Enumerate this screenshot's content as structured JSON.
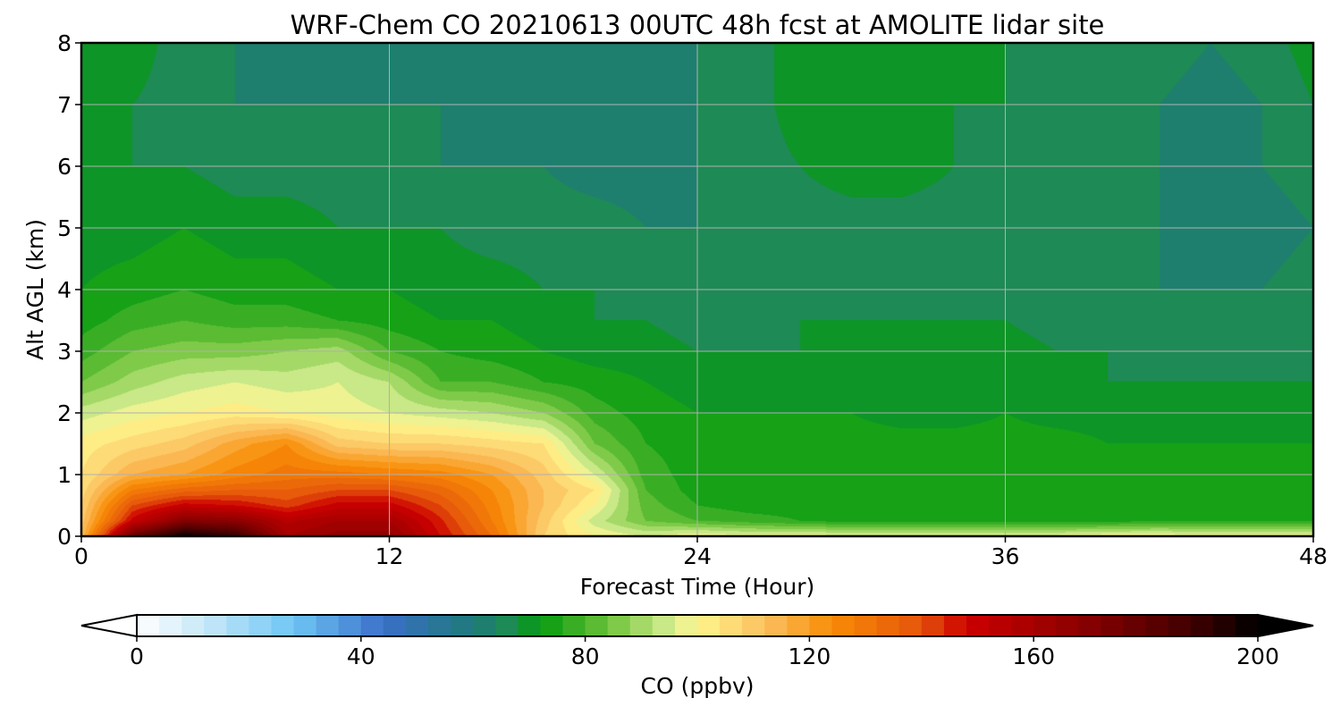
{
  "chart_data": {
    "type": "heatmap",
    "title": "WRF-Chem CO  20210613 00UTC 48h fcst at AMOLITE lidar site",
    "xlabel": "Forecast Time (Hour)",
    "ylabel": "Alt AGL (km)",
    "xlim": [
      0,
      48
    ],
    "ylim": [
      0,
      8
    ],
    "x_ticks": [
      "0",
      "12",
      "24",
      "36",
      "48"
    ],
    "y_ticks": [
      "0",
      "1",
      "2",
      "3",
      "4",
      "5",
      "6",
      "7",
      "8"
    ],
    "grid": true,
    "colorbar": {
      "label": "CO  (ppbv)",
      "range": [
        0,
        200
      ],
      "step": 4,
      "extend": "both",
      "ticks": [
        "0",
        "40",
        "80",
        "120",
        "160",
        "200"
      ],
      "colors": [
        {
          "value": 0,
          "color": "#ffffff"
        },
        {
          "value": 12,
          "color": "#c8e8f8"
        },
        {
          "value": 28,
          "color": "#6ec6f5"
        },
        {
          "value": 44,
          "color": "#3a6fc8"
        },
        {
          "value": 60,
          "color": "#1e7a7a"
        },
        {
          "value": 66,
          "color": "#1e8a55"
        },
        {
          "value": 72,
          "color": "#059a10"
        },
        {
          "value": 84,
          "color": "#6cc23a"
        },
        {
          "value": 96,
          "color": "#dcef96"
        },
        {
          "value": 100,
          "color": "#fff58c"
        },
        {
          "value": 112,
          "color": "#fbc060"
        },
        {
          "value": 124,
          "color": "#f88c06"
        },
        {
          "value": 140,
          "color": "#e4540a"
        },
        {
          "value": 148,
          "color": "#cc0000"
        },
        {
          "value": 168,
          "color": "#8c0000"
        },
        {
          "value": 188,
          "color": "#420000"
        },
        {
          "value": 200,
          "color": "#000000"
        }
      ]
    },
    "times": [
      0,
      2,
      4,
      6,
      8,
      10,
      12,
      14,
      16,
      18,
      20,
      22,
      24,
      26,
      28,
      30,
      32,
      34,
      36,
      38,
      40,
      42,
      44,
      46,
      48
    ],
    "levels": [
      0,
      0.25,
      0.5,
      0.75,
      1,
      1.5,
      2,
      2.5,
      3,
      3.5,
      4,
      5,
      6,
      7,
      8
    ],
    "values": [
      [
        112,
        178,
        200,
        190,
        160,
        166,
        166,
        148,
        132,
        108,
        100,
        96,
        100,
        98,
        98,
        98,
        98,
        98,
        98,
        98,
        100,
        100,
        98,
        98,
        98
      ],
      [
        110,
        150,
        170,
        168,
        155,
        160,
        160,
        145,
        128,
        110,
        94,
        84,
        80,
        78,
        76,
        74,
        74,
        74,
        74,
        74,
        74,
        76,
        76,
        76,
        76
      ],
      [
        108,
        140,
        150,
        148,
        142,
        150,
        150,
        140,
        126,
        112,
        100,
        82,
        76,
        74,
        74,
        74,
        74,
        74,
        74,
        74,
        74,
        74,
        74,
        74,
        74
      ],
      [
        106,
        128,
        134,
        136,
        136,
        140,
        140,
        134,
        124,
        112,
        104,
        80,
        74,
        74,
        74,
        74,
        74,
        74,
        74,
        74,
        74,
        74,
        74,
        74,
        74
      ],
      [
        104,
        116,
        120,
        126,
        130,
        130,
        128,
        126,
        120,
        110,
        96,
        78,
        74,
        74,
        74,
        74,
        74,
        74,
        74,
        74,
        74,
        74,
        74,
        74,
        74
      ],
      [
        102,
        106,
        110,
        118,
        124,
        110,
        108,
        108,
        106,
        104,
        84,
        76,
        74,
        74,
        74,
        74,
        74,
        74,
        74,
        74,
        72,
        72,
        72,
        72,
        72
      ],
      [
        94,
        98,
        100,
        102,
        100,
        98,
        96,
        94,
        92,
        88,
        78,
        74,
        72,
        72,
        72,
        72,
        70,
        70,
        72,
        70,
        70,
        70,
        70,
        70,
        70
      ],
      [
        84,
        90,
        94,
        96,
        94,
        96,
        92,
        80,
        80,
        76,
        74,
        72,
        70,
        70,
        70,
        70,
        68,
        68,
        70,
        68,
        68,
        68,
        68,
        68,
        68
      ],
      [
        78,
        84,
        86,
        86,
        88,
        90,
        80,
        76,
        74,
        72,
        70,
        70,
        68,
        68,
        68,
        68,
        68,
        70,
        70,
        68,
        68,
        66,
        66,
        66,
        66
      ],
      [
        74,
        78,
        80,
        78,
        78,
        76,
        74,
        72,
        72,
        70,
        68,
        68,
        66,
        66,
        68,
        68,
        68,
        68,
        68,
        66,
        66,
        66,
        64,
        64,
        64
      ],
      [
        72,
        74,
        76,
        74,
        74,
        72,
        72,
        70,
        70,
        68,
        68,
        66,
        66,
        66,
        66,
        66,
        68,
        66,
        66,
        66,
        66,
        64,
        64,
        64,
        66
      ],
      [
        70,
        70,
        72,
        70,
        70,
        68,
        68,
        68,
        66,
        66,
        66,
        64,
        64,
        64,
        66,
        66,
        66,
        66,
        66,
        64,
        64,
        64,
        62,
        62,
        64
      ],
      [
        68,
        68,
        68,
        66,
        66,
        66,
        66,
        64,
        64,
        64,
        62,
        62,
        64,
        66,
        68,
        70,
        70,
        68,
        66,
        66,
        64,
        64,
        62,
        64,
        66
      ],
      [
        68,
        68,
        66,
        64,
        64,
        64,
        64,
        64,
        62,
        62,
        62,
        62,
        64,
        66,
        70,
        72,
        70,
        68,
        68,
        66,
        66,
        64,
        62,
        64,
        68
      ],
      [
        70,
        70,
        66,
        64,
        62,
        62,
        62,
        62,
        62,
        62,
        62,
        62,
        64,
        66,
        70,
        72,
        72,
        68,
        68,
        68,
        68,
        66,
        64,
        66,
        70
      ]
    ]
  }
}
